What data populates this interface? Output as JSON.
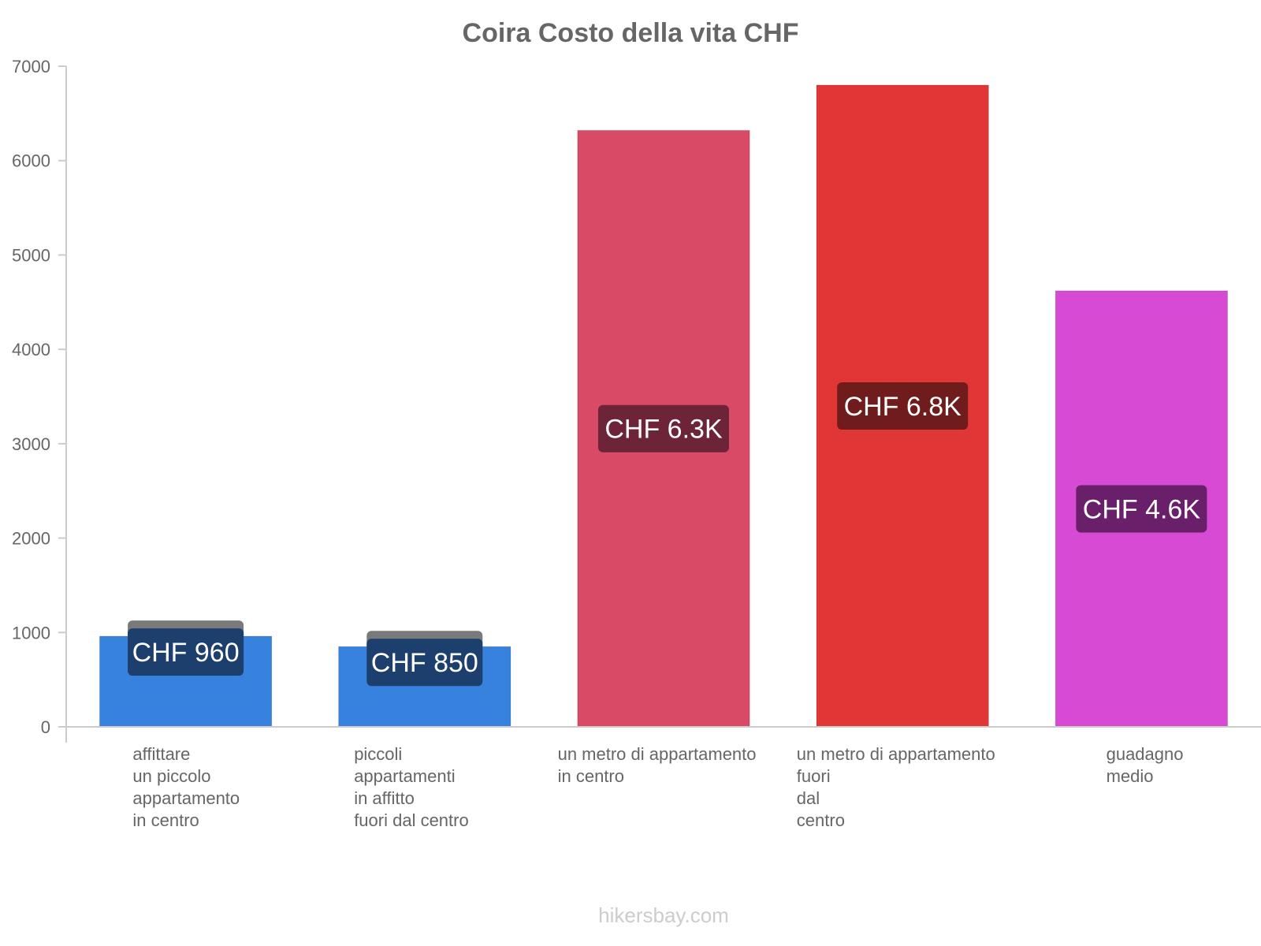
{
  "chart_data": {
    "type": "bar",
    "title": "Coira Costo della vita CHF",
    "xlabel": "",
    "ylabel": "",
    "ylim": [
      0,
      7000
    ],
    "yticks": [
      0,
      1000,
      2000,
      3000,
      4000,
      5000,
      6000,
      7000
    ],
    "grid": false,
    "categories": [
      [
        "affittare",
        "un piccolo",
        "appartamento",
        "in centro"
      ],
      [
        "piccoli",
        "appartamenti",
        "in affitto",
        "fuori dal centro"
      ],
      [
        "un metro di appartamento",
        "in centro"
      ],
      [
        "un metro di appartamento",
        "fuori",
        "dal",
        "centro"
      ],
      [
        "guadagno",
        "medio"
      ]
    ],
    "values": [
      960,
      850,
      6320,
      6800,
      4620
    ],
    "data_labels": [
      "CHF 960",
      "CHF 850",
      "CHF 6.3K",
      "CHF 6.8K",
      "CHF 4.6K"
    ],
    "colors": [
      "#3682de",
      "#3682de",
      "#d84a66",
      "#e03636",
      "#d64ad4"
    ],
    "label_bg_colors": [
      "#1c3f6e",
      "#1c3f6e",
      "#6e2438",
      "#701c1c",
      "#6a1f6a"
    ],
    "label_tab_color": "#7a7a7a"
  },
  "footer": "hikersbay.com"
}
